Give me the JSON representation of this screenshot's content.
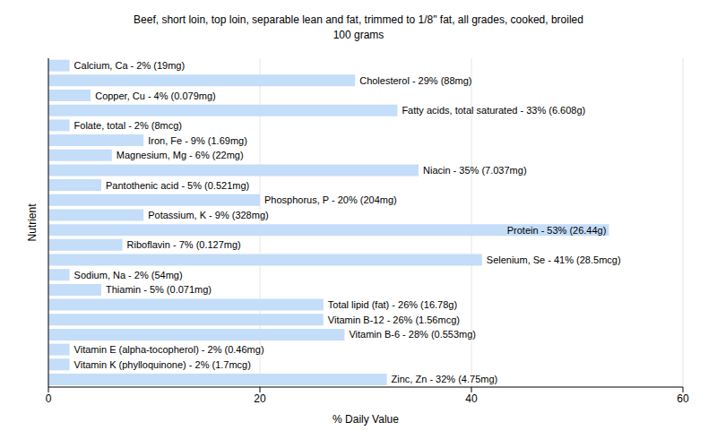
{
  "chart_data": {
    "type": "bar",
    "orientation": "horizontal",
    "title": "Beef, short loin, top loin, separable lean and fat, trimmed to 1/8\" fat, all grades, cooked, broiled",
    "subtitle": "100 grams",
    "x_label": "% Daily Value",
    "y_label": "Nutrient",
    "categories": [
      "Calcium, Ca",
      "Cholesterol",
      "Copper, Cu",
      "Fatty acids, total saturated",
      "Folate, total",
      "Iron, Fe",
      "Magnesium, Mg",
      "Niacin",
      "Pantothenic acid",
      "Phosphorus, P",
      "Potassium, K",
      "Protein",
      "Riboflavin",
      "Selenium, Se",
      "Sodium, Na",
      "Thiamin",
      "Total lipid (fat)",
      "Vitamin B-12",
      "Vitamin B-6",
      "Vitamin E (alpha-tocopherol)",
      "Vitamin K (phylloquinone)",
      "Zinc, Zn"
    ],
    "values": [
      2,
      29,
      4,
      33,
      2,
      9,
      6,
      35,
      5,
      20,
      9,
      53,
      7,
      41,
      2,
      5,
      26,
      26,
      28,
      2,
      2,
      32
    ],
    "value_labels": [
      "Calcium, Ca - 2% (19mg)",
      "Cholesterol - 29% (88mg)",
      "Copper, Cu - 4% (0.079mg)",
      "Fatty acids, total saturated - 33% (6.608g)",
      "Folate, total - 2% (8mcg)",
      "Iron, Fe - 9% (1.69mg)",
      "Magnesium, Mg - 6% (22mg)",
      "Niacin - 35% (7.037mg)",
      "Pantothenic acid - 5% (0.521mg)",
      "Phosphorus, P - 20% (204mg)",
      "Potassium, K - 9% (328mg)",
      "Protein - 53% (26.44g)",
      "Riboflavin - 7% (0.127mg)",
      "Selenium, Se - 41% (28.5mcg)",
      "Sodium, Na - 2% (54mg)",
      "Thiamin - 5% (0.071mg)",
      "Total lipid (fat) - 26% (16.78g)",
      "Vitamin B-12 - 26% (1.56mcg)",
      "Vitamin B-6 - 28% (0.553mg)",
      "Vitamin E (alpha-tocopherol) - 2% (0.46mg)",
      "Vitamin K (phylloquinone) - 2% (1.7mcg)",
      "Zinc, Zn - 32% (4.75mg)"
    ],
    "color": "#c4ddf8",
    "xlim": [
      0,
      60
    ],
    "xticks": [
      0,
      20,
      40,
      60
    ],
    "grid": true,
    "data_labels": true,
    "tick_labels": "x"
  }
}
